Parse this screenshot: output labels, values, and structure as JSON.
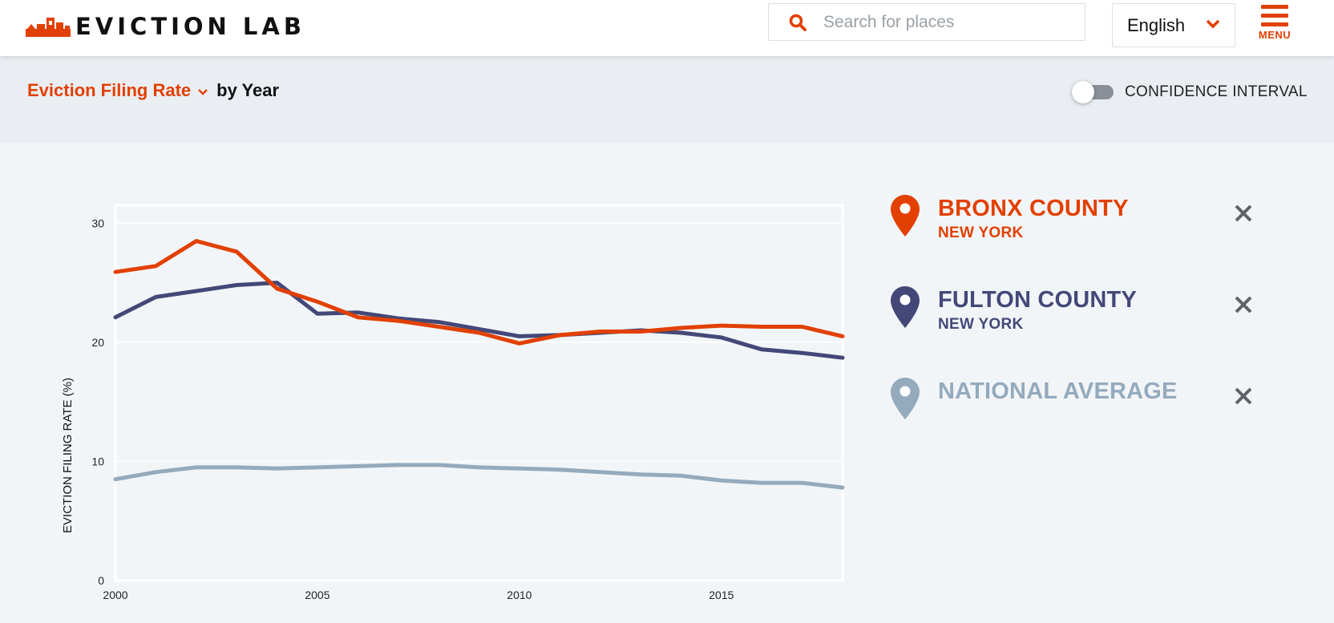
{
  "header": {
    "logo_text": "EVICTION LAB",
    "search_placeholder": "Search for places",
    "language": "English",
    "menu_label": "MENU"
  },
  "toolbar": {
    "metric": "Eviction Filing Rate",
    "metric_suffix": "by Year",
    "confidence_label": "CONFIDENCE INTERVAL",
    "confidence_enabled": false
  },
  "legend": [
    {
      "name": "BRONX COUNTY",
      "sub": "NEW YORK",
      "color": "#e24000"
    },
    {
      "name": "FULTON COUNTY",
      "sub": "NEW YORK",
      "color": "#434878"
    },
    {
      "name": "NATIONAL AVERAGE",
      "sub": "",
      "color": "#94aabd"
    }
  ],
  "chart_data": {
    "type": "line",
    "ylabel": "EVICTION FILING RATE (%)",
    "xlabel": "",
    "xlim": [
      2000,
      2018
    ],
    "ylim": [
      0,
      31.5
    ],
    "x_ticks": [
      2000,
      2005,
      2010,
      2015
    ],
    "y_ticks": [
      0,
      10,
      20,
      30
    ],
    "grid": true,
    "x": [
      2000,
      2001,
      2002,
      2003,
      2004,
      2005,
      2006,
      2007,
      2008,
      2009,
      2010,
      2011,
      2012,
      2013,
      2014,
      2015,
      2016,
      2017,
      2018
    ],
    "series": [
      {
        "name": "BRONX COUNTY",
        "color": "#e24000",
        "values": [
          25.9,
          26.4,
          28.5,
          27.6,
          24.5,
          23.4,
          22.1,
          21.8,
          21.3,
          20.8,
          19.9,
          20.6,
          20.9,
          20.9,
          21.2,
          21.4,
          21.3,
          21.3,
          20.5
        ]
      },
      {
        "name": "FULTON COUNTY",
        "color": "#434878",
        "values": [
          22.1,
          23.8,
          24.3,
          24.8,
          25.0,
          22.4,
          22.5,
          22.0,
          21.7,
          21.1,
          20.5,
          20.6,
          20.8,
          21.0,
          20.8,
          20.4,
          19.4,
          19.1,
          18.7
        ]
      },
      {
        "name": "NATIONAL AVERAGE",
        "color": "#94aabd",
        "values": [
          8.5,
          9.1,
          9.5,
          9.5,
          9.4,
          9.5,
          9.6,
          9.7,
          9.7,
          9.5,
          9.4,
          9.3,
          9.1,
          8.9,
          8.8,
          8.4,
          8.2,
          8.2,
          7.8
        ]
      }
    ]
  }
}
